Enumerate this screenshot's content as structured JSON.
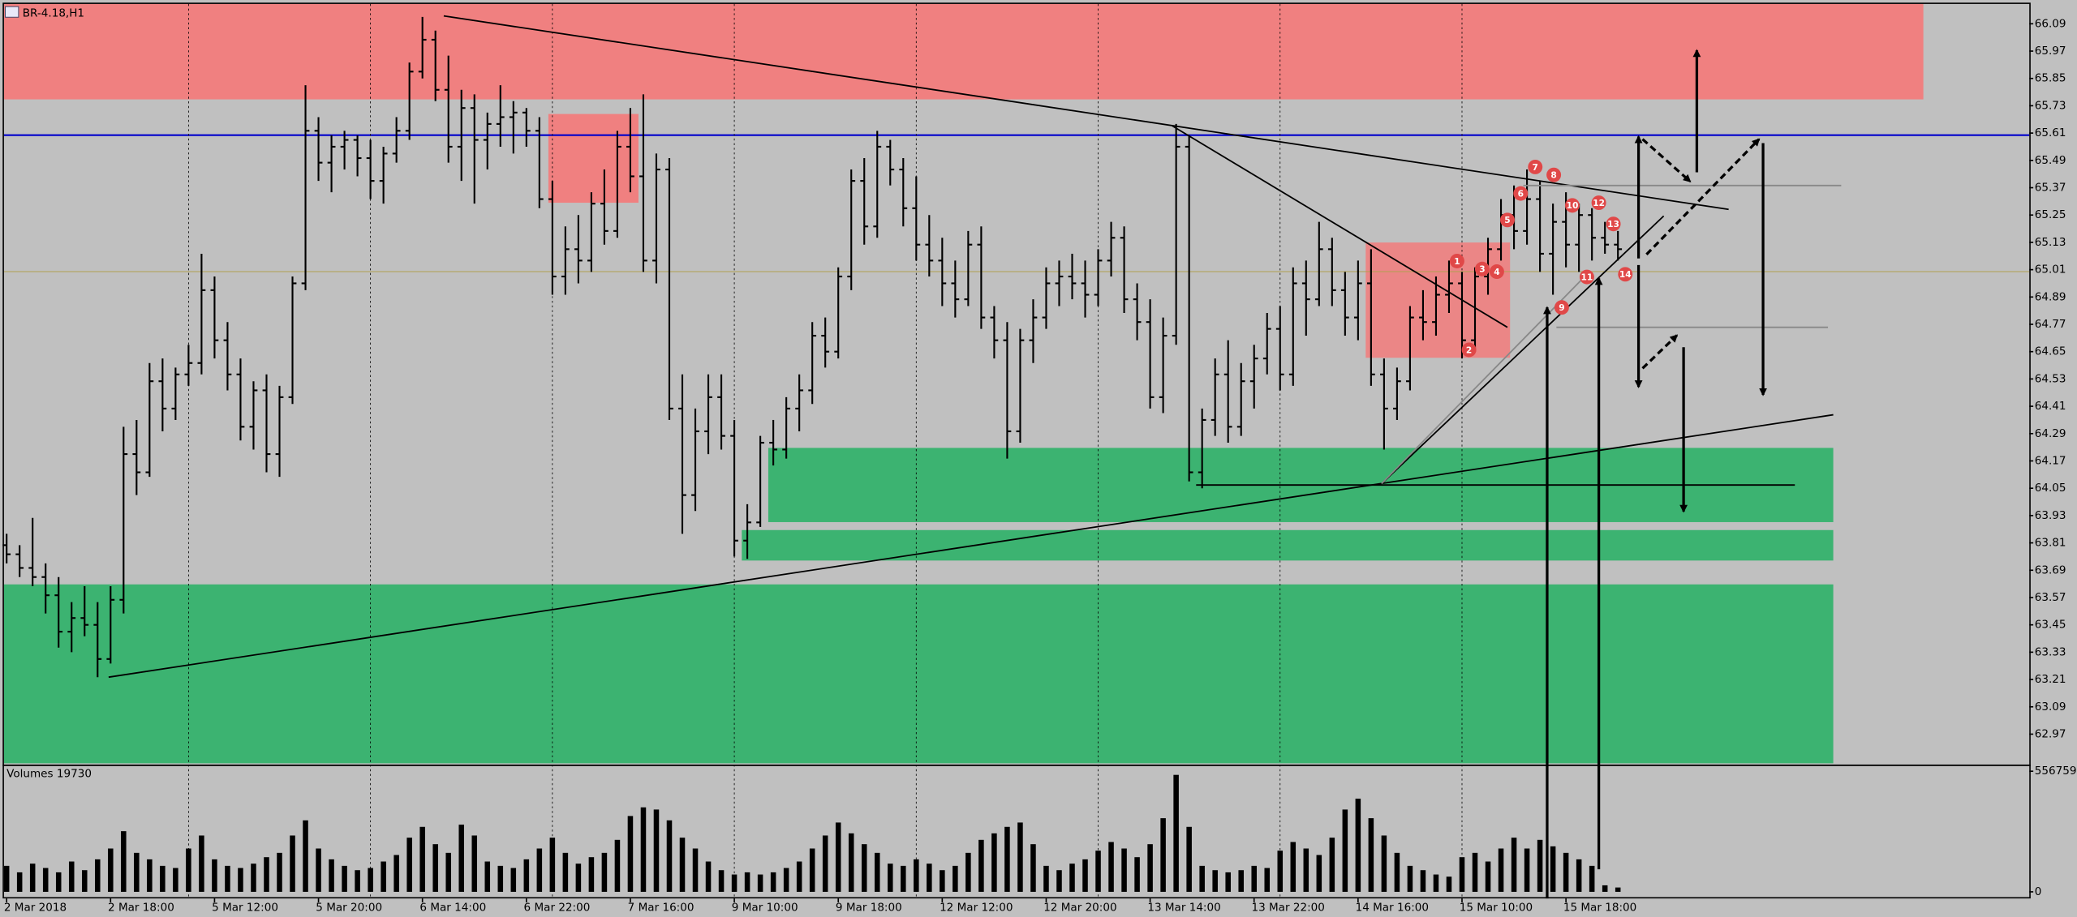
{
  "chart_data": {
    "type": "ohlc",
    "title": "BR-4.18,H1",
    "color": "#000000",
    "grid": true,
    "ylim": [
      62.842,
      66.177
    ],
    "yticks": [
      66.09,
      65.97,
      65.85,
      65.73,
      65.61,
      65.49,
      65.37,
      65.25,
      65.13,
      65.01,
      64.89,
      64.77,
      64.65,
      64.53,
      64.41,
      64.29,
      64.17,
      64.05,
      63.93,
      63.81,
      63.69,
      63.57,
      63.45,
      63.33,
      63.21,
      63.09,
      62.97
    ],
    "categories": [
      "2 Mar 2018",
      null,
      null,
      null,
      null,
      null,
      null,
      null,
      "2 Mar 18:00",
      null,
      null,
      null,
      null,
      null,
      null,
      null,
      "5 Mar 12:00",
      null,
      null,
      null,
      null,
      null,
      null,
      null,
      "5 Mar 20:00",
      null,
      null,
      null,
      null,
      null,
      null,
      null,
      "6 Mar 14:00",
      null,
      null,
      null,
      null,
      null,
      null,
      null,
      "6 Mar 22:00",
      null,
      null,
      null,
      null,
      null,
      null,
      null,
      "7 Mar 16:00",
      null,
      null,
      null,
      null,
      null,
      null,
      null,
      "9 Mar 10:00",
      null,
      null,
      null,
      null,
      null,
      null,
      null,
      "9 Mar 18:00",
      null,
      null,
      null,
      null,
      null,
      null,
      null,
      "12 Mar 12:00",
      null,
      null,
      null,
      null,
      null,
      null,
      null,
      "12 Mar 20:00",
      null,
      null,
      null,
      null,
      null,
      null,
      null,
      "13 Mar 14:00",
      null,
      null,
      null,
      null,
      null,
      null,
      null,
      "13 Mar 22:00",
      null,
      null,
      null,
      null,
      null,
      null,
      null,
      "14 Mar 16:00",
      null,
      null,
      null,
      null,
      null,
      null,
      null,
      "15 Mar 10:00",
      null,
      null,
      null,
      null,
      null,
      null,
      null,
      "15 Mar 18:00",
      null,
      null,
      null,
      null
    ],
    "open": [
      63.8,
      63.76,
      63.7,
      63.66,
      63.58,
      63.42,
      63.48,
      63.45,
      63.3,
      63.56,
      64.2,
      64.12,
      64.52,
      64.4,
      64.55,
      64.6,
      64.92,
      64.7,
      64.55,
      64.32,
      64.48,
      64.2,
      64.45,
      64.95,
      65.62,
      65.48,
      65.55,
      65.58,
      65.5,
      65.4,
      65.52,
      65.62,
      65.88,
      66.02,
      65.8,
      65.55,
      65.72,
      65.58,
      65.65,
      65.68,
      65.7,
      65.62,
      65.32,
      64.98,
      65.1,
      65.05,
      65.3,
      65.18,
      65.55,
      65.42,
      65.05,
      65.45,
      64.4,
      64.02,
      64.3,
      64.45,
      64.28,
      63.82,
      63.9,
      64.25,
      64.22,
      64.4,
      64.48,
      64.72,
      64.65,
      64.98,
      65.4,
      65.2,
      65.55,
      65.45,
      65.28,
      65.12,
      65.05,
      64.95,
      64.88,
      65.12,
      64.8,
      64.7,
      64.3,
      64.7,
      64.8,
      64.95,
      64.98,
      64.95,
      64.9,
      65.05,
      65.15,
      64.88,
      64.78,
      64.45,
      64.72,
      65.55,
      64.12,
      64.35,
      64.55,
      64.32,
      64.52,
      64.62,
      64.75,
      64.55,
      64.95,
      64.88,
      65.1,
      64.92,
      64.8,
      64.95,
      64.55,
      64.4,
      64.52,
      64.8,
      64.78,
      64.9,
      64.95,
      64.7,
      64.98,
      65.1,
      65.25,
      65.18,
      65.32,
      65.08,
      65.22,
      65.12,
      65.25,
      65.15,
      65.12
    ],
    "high": [
      63.85,
      63.8,
      63.92,
      63.72,
      63.66,
      63.55,
      63.62,
      63.55,
      63.62,
      64.32,
      64.35,
      64.6,
      64.62,
      64.58,
      64.68,
      65.08,
      64.98,
      64.78,
      64.62,
      64.52,
      64.55,
      64.5,
      64.98,
      65.82,
      65.68,
      65.6,
      65.62,
      65.6,
      65.58,
      65.55,
      65.68,
      65.92,
      66.12,
      66.06,
      65.95,
      65.8,
      65.78,
      65.7,
      65.82,
      65.75,
      65.72,
      65.68,
      65.4,
      65.2,
      65.25,
      65.35,
      65.45,
      65.62,
      65.72,
      65.78,
      65.52,
      65.5,
      64.55,
      64.4,
      64.55,
      64.55,
      64.35,
      63.98,
      64.28,
      64.35,
      64.45,
      64.55,
      64.78,
      64.8,
      65.02,
      65.45,
      65.5,
      65.62,
      65.58,
      65.5,
      65.42,
      65.25,
      65.15,
      65.05,
      65.18,
      65.2,
      64.85,
      64.78,
      64.75,
      64.88,
      65.02,
      65.05,
      65.08,
      65.05,
      65.1,
      65.22,
      65.2,
      64.95,
      64.88,
      64.8,
      65.65,
      65.6,
      64.4,
      64.62,
      64.7,
      64.6,
      64.68,
      64.82,
      64.85,
      65.02,
      65.05,
      65.22,
      65.15,
      65.0,
      65.05,
      65.1,
      64.62,
      64.58,
      64.85,
      64.92,
      64.98,
      65.05,
      65.0,
      65.02,
      65.15,
      65.32,
      65.38,
      65.45,
      65.4,
      65.3,
      65.35,
      65.3,
      65.28,
      65.22,
      65.18
    ],
    "low": [
      63.72,
      63.66,
      63.62,
      63.5,
      63.35,
      63.33,
      63.4,
      63.22,
      63.28,
      63.5,
      64.02,
      64.1,
      64.3,
      64.35,
      64.5,
      64.55,
      64.62,
      64.48,
      64.26,
      64.22,
      64.12,
      64.1,
      64.42,
      64.92,
      65.4,
      65.35,
      65.45,
      65.42,
      65.32,
      65.3,
      65.48,
      65.58,
      65.85,
      65.75,
      65.48,
      65.4,
      65.3,
      65.45,
      65.55,
      65.52,
      65.55,
      65.28,
      64.9,
      64.9,
      64.95,
      65.0,
      65.12,
      65.15,
      65.35,
      65.0,
      64.95,
      64.35,
      63.85,
      63.95,
      64.2,
      64.22,
      63.75,
      63.74,
      63.88,
      64.15,
      64.18,
      64.3,
      64.42,
      64.58,
      64.62,
      64.92,
      65.12,
      65.15,
      65.38,
      65.2,
      65.05,
      64.98,
      64.85,
      64.8,
      64.85,
      64.75,
      64.62,
      64.18,
      64.25,
      64.6,
      64.75,
      64.85,
      64.88,
      64.8,
      64.85,
      64.98,
      64.82,
      64.7,
      64.4,
      64.38,
      64.68,
      64.08,
      64.05,
      64.28,
      64.25,
      64.28,
      64.4,
      64.55,
      64.48,
      64.5,
      64.72,
      64.85,
      64.85,
      64.72,
      64.7,
      64.5,
      64.22,
      64.35,
      64.48,
      64.7,
      64.72,
      64.82,
      64.62,
      64.65,
      64.9,
      65.05,
      65.1,
      65.12,
      65.0,
      64.9,
      65.02,
      65.0,
      65.05,
      65.08,
      65.05
    ],
    "close": [
      63.76,
      63.7,
      63.66,
      63.58,
      63.42,
      63.48,
      63.45,
      63.3,
      63.56,
      64.2,
      64.12,
      64.52,
      64.4,
      64.55,
      64.6,
      64.92,
      64.7,
      64.55,
      64.32,
      64.48,
      64.2,
      64.45,
      64.95,
      65.62,
      65.48,
      65.55,
      65.58,
      65.5,
      65.4,
      65.52,
      65.62,
      65.88,
      66.02,
      65.8,
      65.55,
      65.72,
      65.58,
      65.65,
      65.68,
      65.7,
      65.62,
      65.32,
      64.98,
      65.1,
      65.05,
      65.3,
      65.18,
      65.55,
      65.42,
      65.05,
      65.45,
      64.4,
      64.02,
      64.3,
      64.45,
      64.28,
      63.82,
      63.9,
      64.25,
      64.22,
      64.4,
      64.48,
      64.72,
      64.65,
      64.98,
      65.4,
      65.2,
      65.55,
      65.45,
      65.28,
      65.12,
      65.05,
      64.95,
      64.88,
      65.12,
      64.8,
      64.7,
      64.3,
      64.7,
      64.8,
      64.95,
      64.98,
      64.95,
      64.9,
      65.05,
      65.15,
      64.88,
      64.78,
      64.45,
      64.72,
      65.55,
      64.12,
      64.35,
      64.55,
      64.32,
      64.52,
      64.62,
      64.75,
      64.55,
      64.95,
      64.88,
      65.1,
      64.92,
      64.8,
      64.95,
      64.55,
      64.4,
      64.52,
      64.8,
      64.78,
      64.9,
      64.95,
      64.7,
      64.98,
      65.1,
      65.25,
      65.18,
      65.32,
      65.08,
      65.22,
      65.12,
      65.25,
      65.15,
      65.12,
      65.1
    ],
    "volume": {
      "title": "Volumes 19730",
      "color": "#000000",
      "ylim": [
        0,
        581232
      ],
      "yticks": [
        556759,
        0
      ],
      "values": [
        120000,
        90000,
        130000,
        110000,
        90000,
        140000,
        100000,
        150000,
        200000,
        280000,
        180000,
        150000,
        120000,
        110000,
        200000,
        260000,
        150000,
        120000,
        110000,
        130000,
        160000,
        180000,
        260000,
        330000,
        200000,
        150000,
        120000,
        100000,
        110000,
        140000,
        170000,
        250000,
        300000,
        220000,
        180000,
        310000,
        260000,
        140000,
        120000,
        110000,
        150000,
        200000,
        250000,
        180000,
        130000,
        160000,
        180000,
        240000,
        350000,
        390000,
        380000,
        330000,
        250000,
        200000,
        140000,
        100000,
        80000,
        90000,
        80000,
        90000,
        110000,
        140000,
        200000,
        260000,
        320000,
        270000,
        220000,
        180000,
        130000,
        120000,
        150000,
        130000,
        100000,
        120000,
        180000,
        240000,
        270000,
        300000,
        320000,
        220000,
        120000,
        100000,
        130000,
        150000,
        190000,
        230000,
        200000,
        160000,
        220000,
        340000,
        540000,
        300000,
        120000,
        100000,
        90000,
        100000,
        120000,
        110000,
        190000,
        230000,
        200000,
        170000,
        250000,
        380000,
        430000,
        340000,
        260000,
        180000,
        120000,
        100000,
        80000,
        70000,
        160000,
        180000,
        140000,
        200000,
        250000,
        200000,
        240000,
        210000,
        180000,
        150000,
        120000,
        30000,
        20000
      ]
    },
    "annotations": [
      "1",
      "2",
      "3",
      "4",
      "5",
      "6",
      "7",
      "8",
      "9",
      "10",
      "11",
      "12",
      "13",
      "14"
    ]
  }
}
